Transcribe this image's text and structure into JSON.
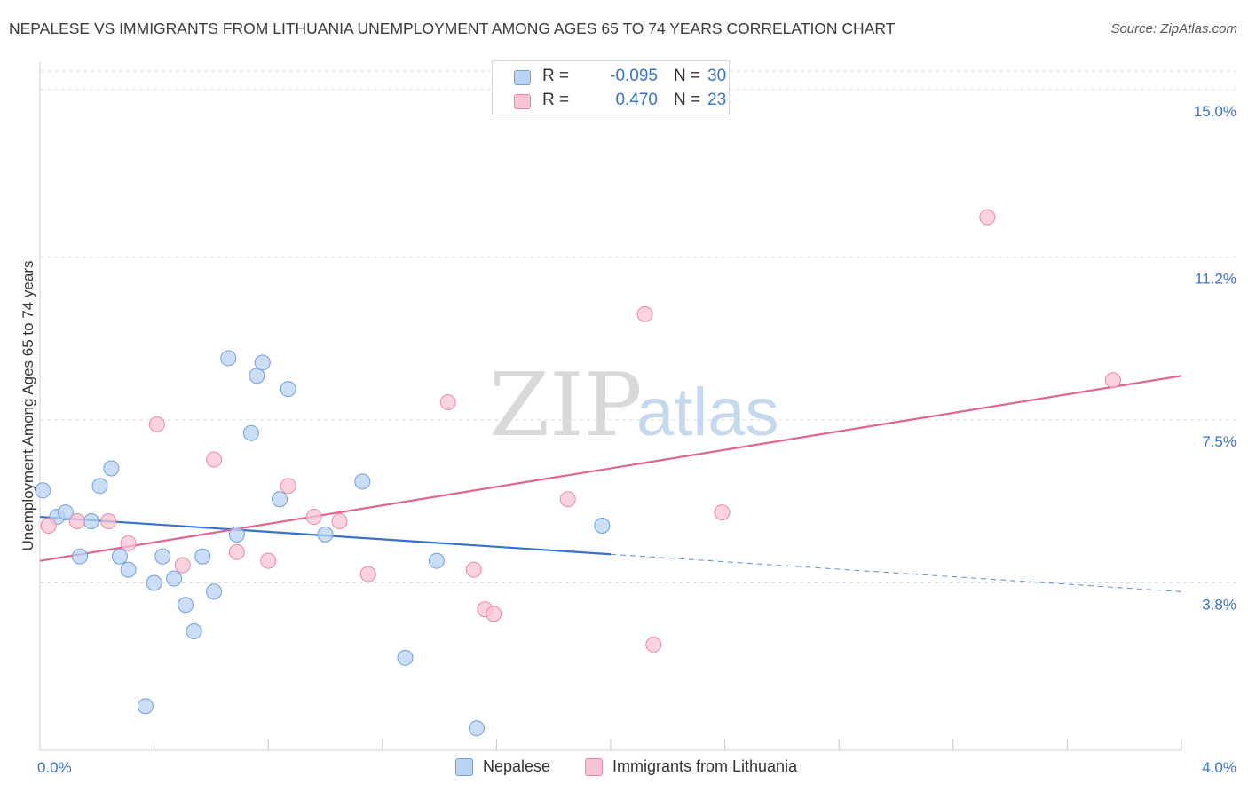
{
  "title": "NEPALESE VS IMMIGRANTS FROM LITHUANIA UNEMPLOYMENT AMONG AGES 65 TO 74 YEARS CORRELATION CHART",
  "source": "Source: ZipAtlas.com",
  "watermark": {
    "zip": "ZIP",
    "atlas": "atlas"
  },
  "colors": {
    "blue_fill": "#b9d3f2",
    "blue_stroke": "#6f9fdc",
    "blue_line": "#3572cf",
    "pink_fill": "#f8c4d3",
    "pink_stroke": "#e88aa6",
    "pink_line": "#e0668f",
    "tick_label": "#3b73c6",
    "grid": "#dddddd"
  },
  "stats": [
    {
      "r_label": "R =",
      "r_value": "-0.095",
      "n_label": "N =",
      "n_value": "30",
      "color": "blue"
    },
    {
      "r_label": "R =",
      "r_value": "0.470",
      "n_label": "N =",
      "n_value": "23",
      "color": "pink"
    }
  ],
  "legend": [
    {
      "label": "Nepalese",
      "color": "blue"
    },
    {
      "label": "Immigrants from Lithuania",
      "color": "pink"
    }
  ],
  "chart_data": {
    "type": "scatter",
    "title": "NEPALESE VS IMMIGRANTS FROM LITHUANIA UNEMPLOYMENT AMONG AGES 65 TO 74 YEARS CORRELATION CHART",
    "xlabel": "",
    "ylabel": "Unemployment Among Ages 65 to 74 years",
    "xlim": [
      0.0,
      4.0
    ],
    "ylim": [
      0.0,
      15.5
    ],
    "x_tick_labels": [
      {
        "value": 0.0,
        "label": "0.0%"
      },
      {
        "value": 4.0,
        "label": "4.0%"
      }
    ],
    "y_ticks": [
      {
        "value": 3.8,
        "label": "3.8%"
      },
      {
        "value": 7.5,
        "label": "7.5%"
      },
      {
        "value": 11.2,
        "label": "11.2%"
      },
      {
        "value": 15.0,
        "label": "15.0%"
      }
    ],
    "grid": true,
    "legend_position": "bottom",
    "series": [
      {
        "name": "Nepalese",
        "color": "blue",
        "points": [
          [
            0.01,
            5.9
          ],
          [
            0.06,
            5.3
          ],
          [
            0.09,
            5.4
          ],
          [
            0.14,
            4.4
          ],
          [
            0.18,
            5.2
          ],
          [
            0.21,
            6.0
          ],
          [
            0.25,
            6.4
          ],
          [
            0.28,
            4.4
          ],
          [
            0.31,
            4.1
          ],
          [
            0.37,
            1.0
          ],
          [
            0.4,
            3.8
          ],
          [
            0.43,
            4.4
          ],
          [
            0.47,
            3.9
          ],
          [
            0.51,
            3.3
          ],
          [
            0.54,
            2.7
          ],
          [
            0.57,
            4.4
          ],
          [
            0.61,
            3.6
          ],
          [
            0.66,
            8.9
          ],
          [
            0.69,
            4.9
          ],
          [
            0.74,
            7.2
          ],
          [
            0.76,
            8.5
          ],
          [
            0.78,
            8.8
          ],
          [
            0.84,
            5.7
          ],
          [
            0.87,
            8.2
          ],
          [
            1.0,
            4.9
          ],
          [
            1.13,
            6.1
          ],
          [
            1.28,
            2.1
          ],
          [
            1.39,
            4.3
          ],
          [
            1.53,
            0.5
          ],
          [
            1.97,
            5.1
          ]
        ],
        "trend": {
          "x": [
            0.0,
            2.0
          ],
          "y": [
            5.3,
            4.45
          ],
          "dashed_extension": {
            "x": [
              2.0,
              4.0
            ],
            "y": [
              4.45,
              3.6
            ]
          }
        }
      },
      {
        "name": "Immigrants from Lithuania",
        "color": "pink",
        "points": [
          [
            0.03,
            5.1
          ],
          [
            0.13,
            5.2
          ],
          [
            0.24,
            5.2
          ],
          [
            0.31,
            4.7
          ],
          [
            0.41,
            7.4
          ],
          [
            0.5,
            4.2
          ],
          [
            0.61,
            6.6
          ],
          [
            0.69,
            4.5
          ],
          [
            0.8,
            4.3
          ],
          [
            0.87,
            6.0
          ],
          [
            0.96,
            5.3
          ],
          [
            1.05,
            5.2
          ],
          [
            1.15,
            4.0
          ],
          [
            1.43,
            7.9
          ],
          [
            1.52,
            4.1
          ],
          [
            1.56,
            3.2
          ],
          [
            1.59,
            3.1
          ],
          [
            1.85,
            5.7
          ],
          [
            2.12,
            9.9
          ],
          [
            2.15,
            2.4
          ],
          [
            2.39,
            5.4
          ],
          [
            3.32,
            12.1
          ],
          [
            3.76,
            8.4
          ]
        ],
        "trend": {
          "x": [
            0.0,
            4.0
          ],
          "y": [
            4.3,
            8.5
          ]
        }
      }
    ]
  }
}
